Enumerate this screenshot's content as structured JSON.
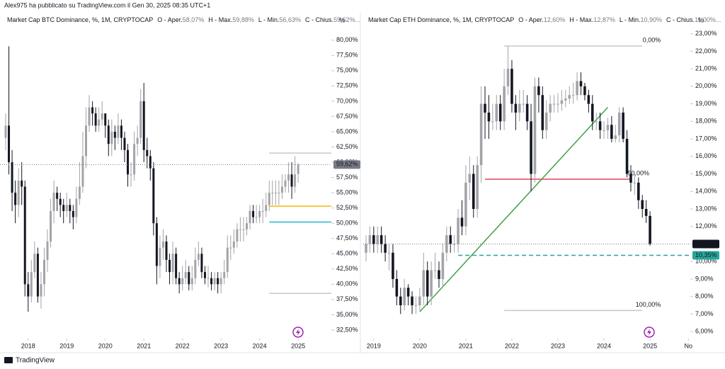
{
  "header": {
    "author_line": "Alex975 ha pubblicato su TradingView.com il Gen 30, 2025 08:35 UTC+1"
  },
  "footer": {
    "brand": "TradingView"
  },
  "chart_data": [
    {
      "type": "candlestick",
      "title": "Market Cap BTC Dominance, %, 1M, CRYPTOCAP",
      "ohlc_legend": [
        {
          "label": "O - Aper.",
          "value": "58,07%"
        },
        {
          "label": "H - Max.",
          "value": "59,88%"
        },
        {
          "label": "L - Min.",
          "value": "56,63%"
        },
        {
          "label": "C - Chius.",
          "value": "59,62%..."
        }
      ],
      "axis_unit": "%",
      "x": [
        "2017-06",
        "2017-07",
        "2017-08",
        "2017-09",
        "2017-10",
        "2017-11",
        "2017-12",
        "2018-01",
        "2018-02",
        "2018-03",
        "2018-04",
        "2018-05",
        "2018-06",
        "2018-07",
        "2018-08",
        "2018-09",
        "2018-10",
        "2018-11",
        "2018-12",
        "2019-01",
        "2019-02",
        "2019-03",
        "2019-04",
        "2019-05",
        "2019-06",
        "2019-07",
        "2019-08",
        "2019-09",
        "2019-10",
        "2019-11",
        "2019-12",
        "2020-01",
        "2020-02",
        "2020-03",
        "2020-04",
        "2020-05",
        "2020-06",
        "2020-07",
        "2020-08",
        "2020-09",
        "2020-10",
        "2020-11",
        "2020-12",
        "2021-01",
        "2021-02",
        "2021-03",
        "2021-04",
        "2021-05",
        "2021-06",
        "2021-07",
        "2021-08",
        "2021-09",
        "2021-10",
        "2021-11",
        "2021-12",
        "2022-01",
        "2022-02",
        "2022-03",
        "2022-04",
        "2022-05",
        "2022-06",
        "2022-07",
        "2022-08",
        "2022-09",
        "2022-10",
        "2022-11",
        "2022-12",
        "2023-01",
        "2023-02",
        "2023-03",
        "2023-04",
        "2023-05",
        "2023-06",
        "2023-07",
        "2023-08",
        "2023-09",
        "2023-10",
        "2023-11",
        "2023-12",
        "2024-01",
        "2024-02",
        "2024-03",
        "2024-04",
        "2024-05",
        "2024-06",
        "2024-07",
        "2024-08",
        "2024-09",
        "2024-10",
        "2024-11",
        "2024-12",
        "2025-01"
      ],
      "open": [
        64,
        66,
        60,
        55,
        53,
        57,
        56,
        40,
        38,
        42,
        45,
        38,
        40,
        44,
        47,
        52,
        55,
        54,
        53,
        52,
        53,
        52,
        51,
        54,
        56,
        61,
        66,
        69,
        68,
        66,
        67,
        68,
        66,
        63,
        65,
        64,
        66,
        64,
        62,
        58,
        58,
        63,
        64,
        70,
        62,
        61,
        59,
        50,
        43,
        46,
        47,
        44,
        42,
        45,
        41,
        40,
        41,
        42,
        40,
        41,
        44,
        45,
        42,
        41,
        41,
        40,
        41,
        40,
        41,
        42,
        46,
        46,
        47,
        49,
        49,
        49,
        50,
        52,
        51,
        51,
        52,
        52,
        53,
        55,
        55,
        55,
        55,
        56,
        57,
        58,
        56,
        58.07
      ],
      "high": [
        68,
        79,
        62,
        57,
        59,
        60,
        57,
        42,
        44,
        47,
        46,
        42,
        46,
        49,
        54,
        57,
        56,
        55,
        54,
        55,
        54,
        53,
        56,
        60,
        65,
        69,
        71,
        70,
        69,
        69,
        70,
        68,
        67,
        67,
        66,
        68,
        67,
        65,
        63,
        60,
        65,
        66,
        72,
        73,
        64,
        62,
        60,
        51,
        48,
        49,
        48,
        45,
        47,
        46,
        42,
        43,
        44,
        43,
        43,
        46,
        47,
        46,
        43,
        43,
        42,
        42,
        42,
        42,
        44,
        48,
        48,
        49,
        50,
        51,
        51,
        51,
        53,
        53,
        53,
        53,
        54,
        55,
        57,
        57,
        57,
        57,
        58,
        58,
        60,
        60,
        61,
        59.88
      ],
      "low": [
        62,
        58,
        52,
        50,
        51,
        53,
        38,
        35.5,
        37,
        41,
        37,
        36,
        38,
        42,
        46,
        50,
        52,
        51,
        50,
        51,
        50,
        49,
        50,
        53,
        55,
        59,
        65,
        66,
        65,
        65,
        66,
        64,
        61,
        61,
        62,
        63,
        62,
        60,
        56,
        56,
        57,
        61,
        63,
        60,
        59,
        57,
        48,
        40,
        41,
        44,
        42,
        40,
        40,
        40,
        38.5,
        39,
        40,
        39,
        39,
        40,
        43,
        41,
        40,
        39.5,
        39,
        39,
        38.5,
        38.5,
        40,
        41,
        44,
        45,
        46,
        47,
        47,
        48,
        49,
        50,
        50,
        50,
        50,
        51,
        52,
        53,
        53,
        53,
        54,
        55,
        55,
        54,
        55,
        56.63
      ],
      "close": [
        66,
        60,
        55,
        53,
        57,
        56,
        40,
        38,
        42,
        45,
        38,
        40,
        44,
        47,
        52,
        55,
        54,
        53,
        52,
        53,
        52,
        51,
        54,
        56,
        61,
        66,
        69,
        68,
        66,
        67,
        68,
        66,
        63,
        65,
        64,
        66,
        64,
        62,
        58,
        58,
        63,
        64,
        70,
        62,
        61,
        59,
        50,
        43,
        46,
        47,
        44,
        42,
        45,
        41,
        40,
        41,
        42,
        40,
        41,
        44,
        45,
        42,
        41,
        41,
        40,
        41,
        40,
        41,
        42,
        46,
        46,
        47,
        49,
        49,
        49,
        50,
        52,
        51,
        51,
        52,
        52,
        53,
        55,
        55,
        55,
        55,
        56,
        57,
        58,
        56,
        58,
        59.62
      ],
      "up_color": "#a3a3a8",
      "down_color": "#131722",
      "ylim": [
        31.1,
        84.5
      ],
      "yticks": [
        {
          "value": 80,
          "label": "80,00%"
        },
        {
          "value": 77.5,
          "label": "77,50%"
        },
        {
          "value": 75,
          "label": "75,00%"
        },
        {
          "value": 72.5,
          "label": "72,50%"
        },
        {
          "value": 70,
          "label": "70,00%"
        },
        {
          "value": 67.5,
          "label": "67,50%"
        },
        {
          "value": 65,
          "label": "65,00%"
        },
        {
          "value": 62.5,
          "label": "62,50%"
        },
        {
          "value": 60,
          "label": "60,00%"
        },
        {
          "value": 57.5,
          "label": "57,50%"
        },
        {
          "value": 55,
          "label": "55,00%"
        },
        {
          "value": 52.5,
          "label": "52,50%"
        },
        {
          "value": 50,
          "label": "50,00%"
        },
        {
          "value": 47.5,
          "label": "47,50%"
        },
        {
          "value": 45,
          "label": "45,00%"
        },
        {
          "value": 42.5,
          "label": "42,50%"
        },
        {
          "value": 40,
          "label": "40,00%"
        },
        {
          "value": 37.5,
          "label": "37,50%"
        },
        {
          "value": 35,
          "label": "35,00%"
        },
        {
          "value": 32.5,
          "label": "32,50%"
        }
      ],
      "xticks": [
        {
          "value": "2018-01",
          "label": "2018"
        },
        {
          "value": "2019-01",
          "label": "2019"
        },
        {
          "value": "2020-01",
          "label": "2020"
        },
        {
          "value": "2021-01",
          "label": "2021"
        },
        {
          "value": "2022-01",
          "label": "2022"
        },
        {
          "value": "2023-01",
          "label": "2023"
        },
        {
          "value": "2024-01",
          "label": "2024"
        },
        {
          "value": "2025-01",
          "label": "2025"
        }
      ],
      "last_label": "59,62%",
      "last_label_color": "#787b86",
      "levels": [
        {
          "value": 61.5,
          "color": "#c8c8cc",
          "from": "2024-04"
        },
        {
          "value": 52.8,
          "color": "#f2b705",
          "from": "2024-04"
        },
        {
          "value": 50.2,
          "color": "#22b8cf",
          "from": "2024-04"
        },
        {
          "value": 38.5,
          "color": "#c8c8cc",
          "from": "2024-04"
        }
      ]
    },
    {
      "type": "candlestick",
      "title": "Market Cap ETH Dominance, %, 1M, CRYPTOCAP",
      "ohlc_legend": [
        {
          "label": "O - Aper.",
          "value": "12,60%"
        },
        {
          "label": "H - Max.",
          "value": "12,87%"
        },
        {
          "label": "L - Min.",
          "value": "10,90%"
        },
        {
          "label": "C - Chius.",
          "value": "11,00%..."
        }
      ],
      "axis_unit": "%",
      "x": [
        "2018-11",
        "2018-12",
        "2019-01",
        "2019-02",
        "2019-03",
        "2019-04",
        "2019-05",
        "2019-06",
        "2019-07",
        "2019-08",
        "2019-09",
        "2019-10",
        "2019-11",
        "2019-12",
        "2020-01",
        "2020-02",
        "2020-03",
        "2020-04",
        "2020-05",
        "2020-06",
        "2020-07",
        "2020-08",
        "2020-09",
        "2020-10",
        "2020-11",
        "2020-12",
        "2021-01",
        "2021-02",
        "2021-03",
        "2021-04",
        "2021-05",
        "2021-06",
        "2021-07",
        "2021-08",
        "2021-09",
        "2021-10",
        "2021-11",
        "2021-12",
        "2022-01",
        "2022-02",
        "2022-03",
        "2022-04",
        "2022-05",
        "2022-06",
        "2022-07",
        "2022-08",
        "2022-09",
        "2022-10",
        "2022-11",
        "2022-12",
        "2023-01",
        "2023-02",
        "2023-03",
        "2023-04",
        "2023-05",
        "2023-06",
        "2023-07",
        "2023-08",
        "2023-09",
        "2023-10",
        "2023-11",
        "2023-12",
        "2024-01",
        "2024-02",
        "2024-03",
        "2024-04",
        "2024-05",
        "2024-06",
        "2024-07",
        "2024-08",
        "2024-09",
        "2024-10",
        "2024-11",
        "2024-12",
        "2025-01"
      ],
      "open": [
        10.5,
        11,
        11.5,
        11,
        11.5,
        11,
        10.5,
        10.5,
        9,
        8,
        7.5,
        8.5,
        8,
        7.5,
        7.5,
        8,
        9.5,
        8,
        9.5,
        9.5,
        9,
        10.5,
        11.5,
        11,
        11,
        12.5,
        12,
        14.5,
        15,
        13,
        15.5,
        19,
        18.5,
        18,
        18,
        19,
        18,
        20,
        21,
        19,
        18.5,
        19,
        19,
        18,
        15,
        20,
        19.5,
        17.5,
        18.5,
        19,
        19,
        19,
        19.2,
        19.3,
        19.5,
        19.5,
        20.3,
        20,
        19.5,
        19,
        18,
        18,
        17.5,
        17.5,
        17.8,
        17,
        17.2,
        18.5,
        17,
        15,
        14.5,
        14.5,
        13.5,
        13,
        12.6
      ],
      "high": [
        11.5,
        12,
        12,
        12,
        12,
        11.5,
        11,
        11,
        9.5,
        8.5,
        9,
        8.7,
        8.3,
        8,
        8.5,
        10.5,
        10,
        10,
        10.5,
        10,
        11,
        12,
        12,
        11.5,
        13,
        13.5,
        15.5,
        16,
        15.5,
        16,
        20,
        20,
        19.5,
        19,
        19.5,
        19.5,
        21,
        22.3,
        21.5,
        19.5,
        19.8,
        19.8,
        19.5,
        19,
        20.5,
        20.5,
        20,
        19.2,
        19.5,
        19.5,
        19.6,
        19.8,
        19.8,
        20,
        20.2,
        20.8,
        20.8,
        20.2,
        19.8,
        19.5,
        18.5,
        18.5,
        18,
        18.2,
        18.3,
        17.8,
        18.8,
        18.8,
        17.5,
        15.5,
        15,
        14.8,
        13.8,
        13.5,
        12.87
      ],
      "low": [
        10,
        10.5,
        10.5,
        10.5,
        10.5,
        10,
        9.5,
        8.5,
        7.5,
        7,
        7.2,
        7.5,
        7,
        7,
        7.2,
        7.5,
        7.5,
        7.5,
        9,
        8.5,
        8.5,
        10,
        10.5,
        10.5,
        10.5,
        11.5,
        11.5,
        13.5,
        12.5,
        12.5,
        14.5,
        17,
        17,
        17.5,
        17.5,
        17.5,
        17.5,
        19.5,
        18.5,
        17.5,
        18,
        18.5,
        17.5,
        14,
        14.5,
        18.5,
        17,
        17,
        18,
        18.5,
        18.5,
        18.6,
        18.8,
        19,
        19,
        19.2,
        19.5,
        19.2,
        18.5,
        17.5,
        17.5,
        17,
        17,
        17,
        16.8,
        16.8,
        16.8,
        16.8,
        14.8,
        14,
        13.8,
        13,
        12.5,
        12.2,
        10.9
      ],
      "close": [
        11,
        11.5,
        11,
        11.5,
        11,
        10.5,
        10.5,
        9,
        8,
        7.5,
        8.5,
        8,
        7.5,
        7.5,
        8,
        9.5,
        8,
        9.5,
        9.5,
        9,
        10.5,
        11.5,
        11,
        11,
        12.5,
        12,
        14.5,
        15,
        13,
        15.5,
        19,
        18.5,
        18,
        18,
        19,
        18,
        20,
        21,
        19,
        18.5,
        19,
        19,
        18,
        15,
        20,
        19.5,
        17.5,
        18.5,
        19,
        19,
        19,
        19.2,
        19.3,
        19.5,
        19.5,
        20.3,
        20,
        19.5,
        19,
        18,
        18,
        17.5,
        17.5,
        17.8,
        17,
        17.2,
        18.5,
        17,
        15,
        14.5,
        14.5,
        13.5,
        13,
        12.6,
        11
      ],
      "up_color": "#a3a3a8",
      "down_color": "#131722",
      "ylim": [
        5.6,
        24.2
      ],
      "yticks": [
        {
          "value": 23,
          "label": "23,00%"
        },
        {
          "value": 22,
          "label": "22,00%"
        },
        {
          "value": 21,
          "label": "21,00%"
        },
        {
          "value": 20,
          "label": "20,00%"
        },
        {
          "value": 19,
          "label": "19,00%"
        },
        {
          "value": 18,
          "label": "18,00%"
        },
        {
          "value": 17,
          "label": "17,00%"
        },
        {
          "value": 16,
          "label": "16,00%"
        },
        {
          "value": 15,
          "label": "15,00%"
        },
        {
          "value": 14,
          "label": "14,00%"
        },
        {
          "value": 13,
          "label": "13,00%"
        },
        {
          "value": 12,
          "label": "12,00%"
        },
        {
          "value": 11,
          "label": "11,00%"
        },
        {
          "value": 10,
          "label": "10,00%"
        },
        {
          "value": 9,
          "label": "9,00%"
        },
        {
          "value": 8,
          "label": "8,00%"
        },
        {
          "value": 7,
          "label": "7,00%"
        },
        {
          "value": 6,
          "label": "6,00%"
        }
      ],
      "xticks": [
        {
          "value": "2019-01",
          "label": "2019"
        },
        {
          "value": "2020-01",
          "label": "2020"
        },
        {
          "value": "2021-01",
          "label": "2021"
        },
        {
          "value": "2022-01",
          "label": "2022"
        },
        {
          "value": "2023-01",
          "label": "2023"
        },
        {
          "value": "2024-01",
          "label": "2024"
        },
        {
          "value": "2025-01",
          "label": "2025"
        },
        {
          "value": "2025-11",
          "label": "No"
        }
      ],
      "last_label": "11,00%",
      "last_label_color": "#131722",
      "levels": [
        {
          "value": 22.3,
          "color": "#c8c8cc",
          "from": "2021-11",
          "to": "2024-11",
          "label": "0,00%"
        },
        {
          "value": 14.7,
          "color": "#e0455a",
          "from": "2021-06",
          "to": "2024-08",
          "label": "50,00%"
        },
        {
          "value": 7.2,
          "color": "#c8c8cc",
          "from": "2021-11",
          "to": "2024-11",
          "label": "100,00%"
        },
        {
          "value": 10.35,
          "color": "#26a69a",
          "from": "2020-11",
          "style": "dashed",
          "box_label": "10,35%"
        }
      ],
      "trendline": {
        "color": "#43a047",
        "start": {
          "x": "2020-01",
          "value": 7.13
        },
        "end": {
          "x": "2024-02",
          "value": 18.8
        }
      }
    }
  ]
}
